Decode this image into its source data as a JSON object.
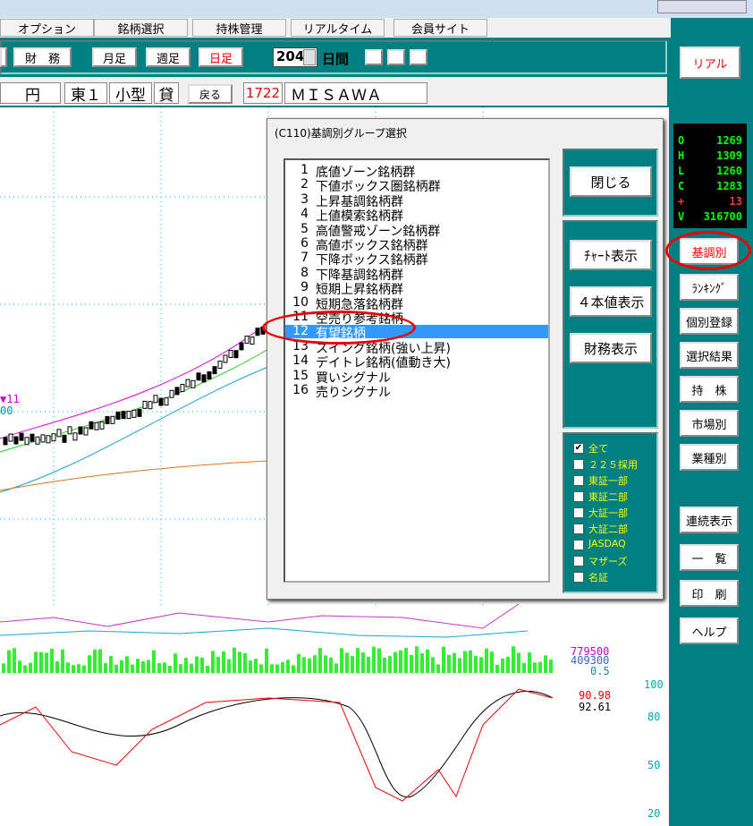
{
  "menu": [
    "オプション",
    "銘柄選択",
    "持株管理",
    "リアルタイム",
    "会員サイト"
  ],
  "toolbar": {
    "finance": "財　務",
    "monthly": "月足",
    "weekly": "週足",
    "daily": "日足",
    "days": "204",
    "days_unit": "日間"
  },
  "stock_bar": {
    "currency": "円",
    "market": "東１",
    "size": "小型",
    "lending": "貸",
    "back": "戻る",
    "code": "1722",
    "name": "ＭＩＳＡＷＡ"
  },
  "side": {
    "real": "リアル",
    "ohlc": [
      {
        "k": "O",
        "v": "1269"
      },
      {
        "k": "H",
        "v": "1309"
      },
      {
        "k": "L",
        "v": "1260"
      },
      {
        "k": "C",
        "v": "1283"
      },
      {
        "k": "+",
        "v": "13"
      },
      {
        "k": "V",
        "v": "316700"
      }
    ],
    "buttons": [
      "基調別",
      "ﾗﾝｷﾝｸﾞ",
      "個別登録",
      "選択結果",
      "持　株",
      "市場別",
      "業種別",
      "連続表示",
      "一　覧",
      "印　刷",
      "ヘルプ"
    ]
  },
  "dialog": {
    "title": "(C110)基調別グループ選択",
    "items": [
      {
        "no": "1",
        "name": "底値ゾーン銘柄群"
      },
      {
        "no": "2",
        "name": "下値ボックス圏銘柄群"
      },
      {
        "no": "3",
        "name": "上昇基調銘柄群"
      },
      {
        "no": "4",
        "name": "上値模索銘柄群"
      },
      {
        "no": "5",
        "name": "高値警戒ゾーン銘柄群"
      },
      {
        "no": "6",
        "name": "高値ボックス銘柄群"
      },
      {
        "no": "7",
        "name": "下降ボックス銘柄群"
      },
      {
        "no": "8",
        "name": "下降基調銘柄群"
      },
      {
        "no": "9",
        "name": "短期上昇銘柄群"
      },
      {
        "no": "10",
        "name": "短期急落銘柄群"
      },
      {
        "no": "11",
        "name": "空売り参考銘柄"
      },
      {
        "no": "12",
        "name": "有望銘柄",
        "selected": true
      },
      {
        "no": "13",
        "name": "スイング銘柄(強い上昇)"
      },
      {
        "no": "14",
        "name": "デイトレ銘柄(値動き大)"
      },
      {
        "no": "15",
        "name": "買いシグナル"
      },
      {
        "no": "16",
        "name": "売りシグナル"
      }
    ],
    "close": "閉じる",
    "actions": [
      "ﾁｬｰﾄ表示",
      "４本値表示",
      "財務表示"
    ],
    "markets": [
      {
        "label": "全て",
        "checked": true
      },
      {
        "label": "２２５採用",
        "checked": false
      },
      {
        "label": "東証一部",
        "checked": false
      },
      {
        "label": "東証二部",
        "checked": false
      },
      {
        "label": "大証一部",
        "checked": false
      },
      {
        "label": "大証二部",
        "checked": false
      },
      {
        "label": "JASDAQ",
        "checked": false
      },
      {
        "label": "マザーズ",
        "checked": false
      },
      {
        "label": "名証",
        "checked": false
      }
    ]
  },
  "chart_labels": {
    "signal": "▼11",
    "price_tail": "00",
    "vol1": "779500",
    "vol2": "409300",
    "vol3": "0.5",
    "osc_100": "100",
    "osc_80": "80",
    "osc_50": "50",
    "osc_20": "20",
    "osc_v1": "90.98",
    "osc_v2": "92.61"
  }
}
